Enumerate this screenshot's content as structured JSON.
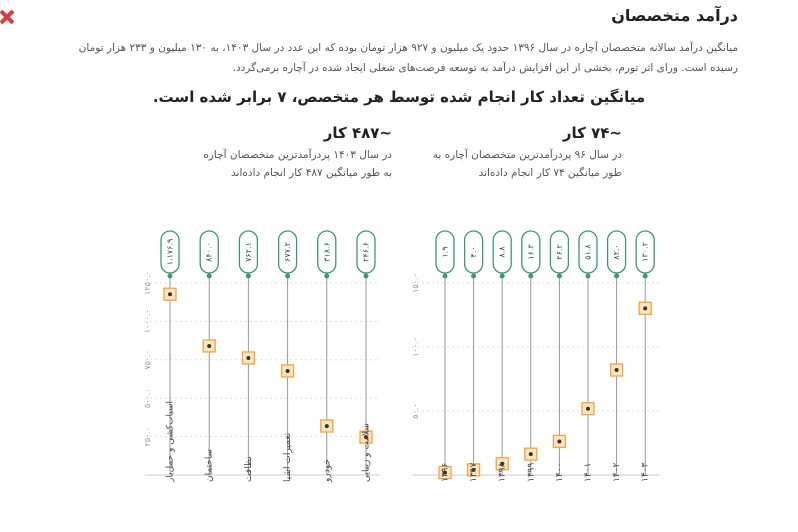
{
  "header": {
    "title": "درآمد متخصصان",
    "paragraph": "میانگین درآمد سالانه متخصصان آچاره در سال ۱۳۹۶ حدود یک میلیون و ۹۲۷ هزار تومان بوده که این عدد در سال ۱۴۰۳، به ۱۳۰ میلیون و ۲۳۳ هزار تومان رسیده است. ورای اثر تورم، بخشی از این افزایش درآمد به توسعه فرصت‌های شغلی ایجاد شده در آچاره برمی‌گردد.",
    "subtitle": "میانگین تعداد کار انجام شده توسط هر متخصص، ۷ برابر شده است."
  },
  "chart_data": [
    {
      "type": "dot",
      "title": "~۷۴ کار",
      "subtitle": "در سال ۹۶ پردرآمدترین متخصصان آچاره به طور میانگین ۷۴ کار انجام داده‌اند",
      "categories": [
        "۱۳۹۶",
        "۱۳۹۷",
        "۱۳۹۸",
        "۱۳۹۹",
        "۱۴۰۰",
        "۱۴۰۱",
        "۱۴۰۲",
        "۱۴۰۳"
      ],
      "values": [
        1.9,
        4.0,
        8.8,
        16.3,
        26.2,
        51.8,
        82.0,
        130.2
      ],
      "value_labels": [
        "۱.۹",
        "۴.۰",
        "۸.۸",
        "۱۶.۳",
        "۲۶.۲",
        "۵۱.۸",
        "۸۲.۰",
        "۱۳۰.۲"
      ],
      "ylim": [
        0,
        150
      ],
      "yticks": [
        {
          "value": 0,
          "label": "۰"
        },
        {
          "value": 50,
          "label": "۵۰.۰"
        },
        {
          "value": 100,
          "label": "۱۰۰.۰"
        },
        {
          "value": 150,
          "label": "۱۵۰.۰"
        }
      ],
      "color": "#f0a63c",
      "grid": true
    },
    {
      "type": "dot",
      "title": "~۴۸۷ کار",
      "subtitle": "در سال ۱۴۰۳ پردرآمدترین متخصصان آچاره به طور میانگین ۴۸۷ کار انجام داده‌اند",
      "categories": [
        "اسباب‌کشی و حمل‌بار",
        "ساختمان",
        "نظافت",
        "تعمیرات اشیا",
        "خودرو",
        "سلامت و زیبایی"
      ],
      "values": [
        1176.9,
        840.0,
        762.1,
        677.2,
        318.6,
        246.6
      ],
      "value_labels": [
        "۱،۱۷۶.۹",
        "۸۴۰.۰",
        "۷۶۲.۱",
        "۶۷۷.۲",
        "۳۱۸.۶",
        "۲۴۶.۶"
      ],
      "ylim": [
        0,
        1250
      ],
      "yticks": [
        {
          "value": 250,
          "label": "۲۵۰.۰"
        },
        {
          "value": 500,
          "label": "۵۰۰.۰"
        },
        {
          "value": 750,
          "label": "۷۵۰.۰"
        },
        {
          "value": 1000,
          "label": "۱۰۰۰.۰"
        },
        {
          "value": 1250,
          "label": "۱۲۵۰.۰"
        }
      ],
      "color": "#f0a63c",
      "grid": true
    }
  ]
}
